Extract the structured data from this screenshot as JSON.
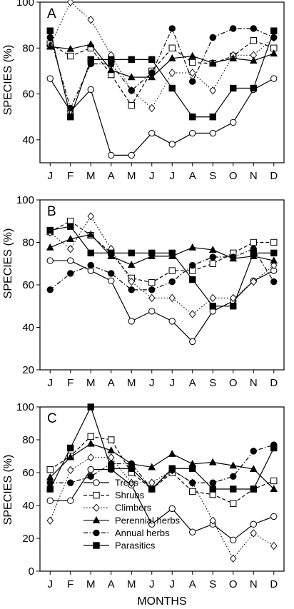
{
  "figure": {
    "x_axis_label": "MONTHS",
    "y_axis_label": "SPECIES (%)"
  },
  "chart_data": [
    {
      "type": "line",
      "panel_label": "A",
      "categories": [
        "J",
        "F",
        "M",
        "A",
        "M",
        "J",
        "J",
        "A",
        "S",
        "O",
        "N",
        "D"
      ],
      "ylim": [
        30,
        100
      ],
      "yticks": [
        "40",
        "60",
        "80",
        "100"
      ],
      "grid": false,
      "series": [
        {
          "key": "trees",
          "values": [
            66.7,
            52.4,
            61.9,
            33.3,
            33.3,
            42.9,
            38.1,
            42.9,
            42.9,
            47.6,
            61.9,
            66.7
          ]
        },
        {
          "key": "shrubs",
          "values": [
            81.8,
            76.5,
            80,
            68.4,
            55,
            70,
            80,
            73.7,
            73.3,
            76.5,
            83.3,
            80
          ]
        },
        {
          "key": "climbers",
          "values": [
            81,
            100,
            92.3,
            76.9,
            61.5,
            53.8,
            69.2,
            69.2,
            61.5,
            76.9,
            76.9,
            84.6
          ]
        },
        {
          "key": "perennial_herbs",
          "values": [
            80.6,
            79.6,
            81.6,
            70.4,
            67.3,
            67.3,
            75.5,
            76.5,
            73.5,
            75.5,
            74.5,
            77.6
          ]
        },
        {
          "key": "annual_herbs",
          "values": [
            84.6,
            53.8,
            73.1,
            73.1,
            61.5,
            69.2,
            88.5,
            65.4,
            84.6,
            88.5,
            88.5,
            84.6
          ]
        },
        {
          "key": "parasitics",
          "values": [
            87.5,
            50,
            75,
            75,
            75,
            75,
            62.5,
            50,
            50,
            62.5,
            62.5,
            87.5
          ]
        }
      ]
    },
    {
      "type": "line",
      "panel_label": "B",
      "categories": [
        "J",
        "F",
        "M",
        "A",
        "M",
        "J",
        "J",
        "A",
        "S",
        "O",
        "N",
        "D"
      ],
      "ylim": [
        20,
        100
      ],
      "yticks": [
        "20",
        "40",
        "60",
        "80",
        "100"
      ],
      "grid": false,
      "series": [
        {
          "key": "trees",
          "values": [
            71.4,
            71.4,
            66.7,
            61.9,
            42.9,
            47.6,
            42.9,
            33.3,
            47.6,
            52.4,
            61.9,
            66.7
          ]
        },
        {
          "key": "shrubs",
          "values": [
            85,
            90,
            83.3,
            75,
            63.2,
            61.1,
            66.7,
            66.7,
            70,
            75,
            80,
            80
          ]
        },
        {
          "key": "climbers",
          "values": [
            84.6,
            76.9,
            92.3,
            76.9,
            61.5,
            53.8,
            53.8,
            46.2,
            53.8,
            53.8,
            61.5,
            69.2
          ]
        },
        {
          "key": "perennial_herbs",
          "values": [
            77.6,
            81.6,
            83.7,
            73.5,
            69.4,
            73.5,
            73.5,
            77.6,
            76.5,
            72.4,
            73.5,
            71.4
          ]
        },
        {
          "key": "annual_herbs",
          "values": [
            57.7,
            65.4,
            69.2,
            65.4,
            57.7,
            57.7,
            61.5,
            69.2,
            73.1,
            73.1,
            76.9,
            61.5
          ]
        },
        {
          "key": "parasitics",
          "values": [
            85.7,
            87.5,
            75,
            75,
            75,
            75,
            75,
            62.5,
            50,
            50,
            75,
            75
          ]
        }
      ]
    },
    {
      "type": "line",
      "panel_label": "C",
      "categories": [
        "J",
        "F",
        "M",
        "A",
        "M",
        "J",
        "J",
        "A",
        "S",
        "O",
        "N",
        "D"
      ],
      "ylim": [
        0,
        100
      ],
      "yticks": [
        "0",
        "20",
        "40",
        "60",
        "80",
        "100"
      ],
      "grid": false,
      "legend": [
        {
          "key": "trees",
          "label": "Trees"
        },
        {
          "key": "shrubs",
          "label": "Shrubs"
        },
        {
          "key": "climbers",
          "label": "Climbers"
        },
        {
          "key": "perennial_herbs",
          "label": "Perennial herbs"
        },
        {
          "key": "annual_herbs",
          "label": "Annual herbs"
        },
        {
          "key": "parasitics",
          "label": "Parasitics"
        }
      ],
      "legend_position": "bottom-left",
      "series": [
        {
          "key": "trees",
          "values": [
            42.9,
            42.9,
            61.9,
            61.9,
            52.4,
            28.6,
            38.1,
            23.8,
            28.6,
            19,
            28.6,
            33.3
          ]
        },
        {
          "key": "shrubs",
          "values": [
            61.9,
            70,
            82,
            80,
            60,
            50,
            60,
            48.5,
            46.7,
            41.2,
            50,
            55
          ]
        },
        {
          "key": "climbers",
          "values": [
            30.8,
            61.5,
            69.2,
            69.2,
            53.8,
            53.8,
            61.5,
            53.8,
            30.8,
            7.7,
            23.1,
            15.4
          ]
        },
        {
          "key": "perennial_herbs",
          "values": [
            57.1,
            69.4,
            77.6,
            73.5,
            65.3,
            63.3,
            71.4,
            65.3,
            66.3,
            64.3,
            62.2,
            50
          ]
        },
        {
          "key": "annual_herbs",
          "values": [
            53.8,
            53.8,
            57.7,
            65.4,
            65.4,
            50,
            61.5,
            53.8,
            53.8,
            57.7,
            73.1,
            76.9
          ]
        },
        {
          "key": "parasitics",
          "values": [
            50,
            75,
            100,
            62.5,
            62.5,
            50,
            62.5,
            62.5,
            50,
            50,
            50,
            75
          ]
        }
      ]
    }
  ],
  "series_styles": {
    "trees": {
      "marker": "open-circle",
      "line": "solid",
      "color": "#000000"
    },
    "shrubs": {
      "marker": "open-square",
      "line": "dashed",
      "color": "#000000"
    },
    "climbers": {
      "marker": "open-diamond",
      "line": "dotted",
      "color": "#000000"
    },
    "perennial_herbs": {
      "marker": "filled-triangle",
      "line": "solid",
      "color": "#000000"
    },
    "annual_herbs": {
      "marker": "filled-circle",
      "line": "dash-dot",
      "color": "#000000"
    },
    "parasitics": {
      "marker": "filled-square",
      "line": "solid",
      "color": "#000000"
    }
  }
}
